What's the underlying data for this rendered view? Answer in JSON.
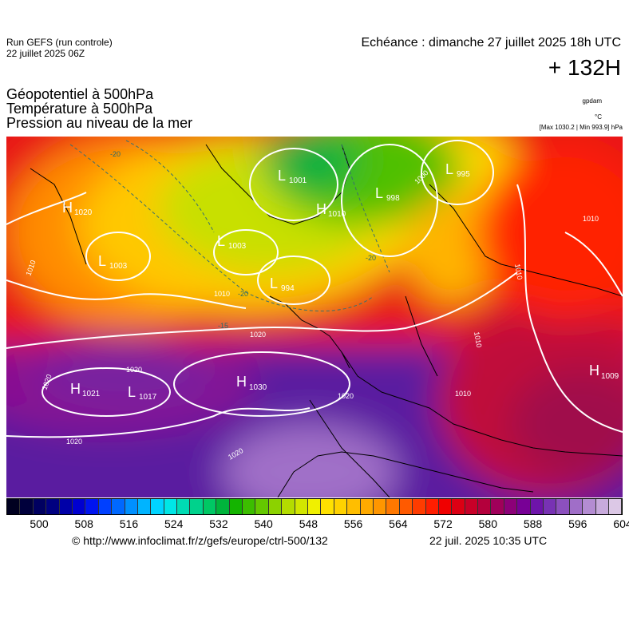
{
  "header": {
    "run_line1": "Run GEFS (run controle)",
    "run_line2": "22 juillet 2025 06Z",
    "echeance": "Echéance : dimanche 27 juillet 2025 18h UTC",
    "step": "+ 132H"
  },
  "titles": {
    "t1": "Géopotentiel à 500hPa",
    "t2": "Température à 500hPa",
    "t3": "Pression au niveau de la mer"
  },
  "units": {
    "geopot": "gpdam",
    "temp": "°C",
    "pressure": "[Max 1030.2 | Min 993.9] hPa"
  },
  "colorscale": {
    "colors": [
      "#000020",
      "#00003c",
      "#000060",
      "#000080",
      "#0000a8",
      "#0000d0",
      "#0014f0",
      "#0040ff",
      "#0068ff",
      "#0090ff",
      "#00b4ff",
      "#00d4ff",
      "#00e6e6",
      "#00dcb4",
      "#00d28c",
      "#00c864",
      "#00b43c",
      "#14b400",
      "#3cbe00",
      "#64c800",
      "#8cd200",
      "#b4dc00",
      "#d2e600",
      "#f0f000",
      "#ffe100",
      "#ffd200",
      "#ffbe00",
      "#ffaa00",
      "#ff9600",
      "#ff7800",
      "#ff5a00",
      "#ff3c00",
      "#ff1e00",
      "#f00000",
      "#dc0014",
      "#c80028",
      "#b4003c",
      "#a0005a",
      "#8c0078",
      "#780096",
      "#6e14aa",
      "#7832b4",
      "#8c50be",
      "#a06ec8",
      "#b48cd2",
      "#c8aadc",
      "#dcc8e6"
    ],
    "ticks": [
      "500",
      "508",
      "516",
      "524",
      "532",
      "540",
      "548",
      "556",
      "564",
      "572",
      "580",
      "588",
      "596",
      "604"
    ]
  },
  "map": {
    "pressure_centers": [
      {
        "type": "H",
        "value": "1020"
      },
      {
        "type": "L",
        "value": "1003"
      },
      {
        "type": "L",
        "value": "1001"
      },
      {
        "type": "H",
        "value": "1010"
      },
      {
        "type": "L",
        "value": "1003"
      },
      {
        "type": "L",
        "value": "994"
      },
      {
        "type": "L",
        "value": "998"
      },
      {
        "type": "L",
        "value": "995"
      },
      {
        "type": "H",
        "value": "1021"
      },
      {
        "type": "L",
        "value": "1017"
      },
      {
        "type": "H",
        "value": "1030"
      },
      {
        "type": "H",
        "value": "1009"
      }
    ],
    "isobar_labels": [
      "1010",
      "1010",
      "1010",
      "1010",
      "1010",
      "1020",
      "1020",
      "1020",
      "1020",
      "1020",
      "1020",
      "1000",
      "1010"
    ],
    "temp_labels": [
      "-20",
      "-20",
      "-20",
      "-15"
    ]
  },
  "footer": {
    "credit": "© http://www.infoclimat.fr/z/gefs/europe/ctrl-500/132",
    "generated": "22 juil. 2025 10:35 UTC"
  }
}
